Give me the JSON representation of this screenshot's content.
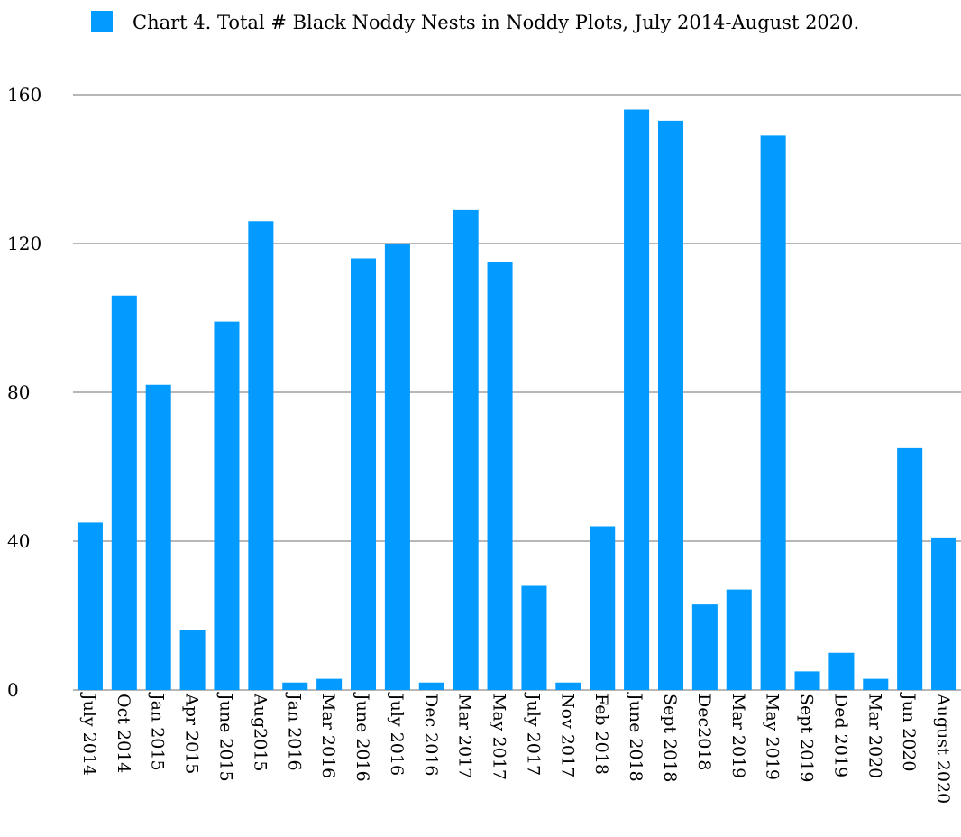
{
  "chart_data": {
    "type": "bar",
    "legend": {
      "position": "top",
      "entries": [
        {
          "label": "Chart 4.  Total # Black Noddy Nests in Noddy Plots, July 2014-August 2020.",
          "color": "#039BFF"
        }
      ]
    },
    "categories": [
      "July 2014",
      "Oct 2014",
      "Jan 2015",
      "Apr 2015",
      "June 2015",
      "Aug2015",
      "Jan 2016",
      "Mar 2016",
      "June 2016",
      "July 2016",
      "Dec 2016",
      "Mar 2017",
      "May 2017",
      "July 2017",
      "Nov 2017",
      "Feb 2018",
      "June 2018",
      "Sept 2018",
      "Dec2018",
      "Mar 2019",
      "May 2019",
      "Sept 2019",
      "Ded 2019",
      "Mar 2020",
      "Jun 2020",
      "August 2020"
    ],
    "series": [
      {
        "name": "Chart 4.  Total # Black Noddy Nests in Noddy Plots, July 2014-August 2020.",
        "color": "#039BFF",
        "values": [
          45,
          106,
          82,
          16,
          99,
          126,
          2,
          3,
          116,
          120,
          2,
          129,
          115,
          28,
          2,
          44,
          156,
          153,
          23,
          27,
          149,
          5,
          10,
          3,
          65,
          41
        ]
      }
    ],
    "ylim": [
      0,
      160
    ],
    "yticks": [
      0,
      40,
      80,
      120,
      160
    ],
    "grid": true,
    "gridline_color": "#b7b7b7"
  }
}
